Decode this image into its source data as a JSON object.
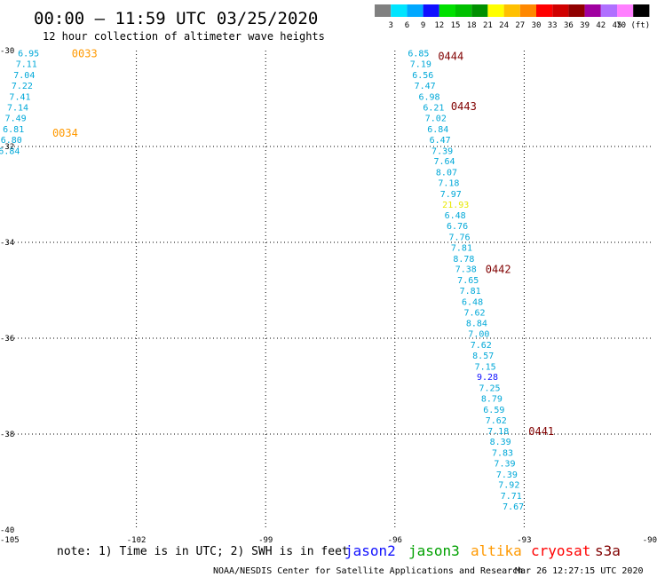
{
  "header": {
    "title": "00:00 — 11:59 UTC 03/25/2020",
    "subtitle": "12 hour collection of altimeter wave heights"
  },
  "color_scale": {
    "labels": [
      "3",
      "6",
      "9",
      "12",
      "15",
      "18",
      "21",
      "24",
      "27",
      "30",
      "33",
      "36",
      "39",
      "42",
      "45",
      "70 (ft)"
    ],
    "colors": [
      "#808080",
      "#00e5ff",
      "#00a8ff",
      "#1010ff",
      "#00e000",
      "#00c000",
      "#009000",
      "#ffff00",
      "#ffc000",
      "#ff8800",
      "#ff0000",
      "#d00000",
      "#900000",
      "#a000a0",
      "#b070ff",
      "#ff80ff",
      "#000000"
    ]
  },
  "footer": {
    "note": "note: 1) Time is in UTC; 2) SWH is in feet",
    "credit": "NOAA/NESDIS Center for Satellite Applications and Research",
    "timestamp": "Mar 26 12:27:15 UTC 2020"
  },
  "legend": [
    {
      "name": "jason2",
      "color": "#1010ff"
    },
    {
      "name": "jason3",
      "color": "#00a000"
    },
    {
      "name": "altika",
      "color": "#ff9900"
    },
    {
      "name": "cryosat",
      "color": "#ff0000"
    },
    {
      "name": "s3a",
      "color": "#800000"
    }
  ],
  "chart_data": {
    "type": "scatter",
    "title": "00:00 — 11:59 UTC 03/25/2020",
    "subtitle": "12 hour collection of altimeter wave heights",
    "xlim": [
      -105,
      -90
    ],
    "ylim": [
      -40,
      -30
    ],
    "xticks": [
      -105,
      -102,
      -99,
      -96,
      -93,
      -90
    ],
    "yticks": [
      -30,
      -32,
      -34,
      -36,
      -38,
      -40
    ],
    "grid": true,
    "points": [
      {
        "x": -104.75,
        "y": -30.05,
        "label": "6.95",
        "color": "#00a8d8"
      },
      {
        "x": -104.8,
        "y": -30.27,
        "label": "7.11",
        "color": "#00a8d8"
      },
      {
        "x": -104.85,
        "y": -30.5,
        "label": "7.04",
        "color": "#00a8d8"
      },
      {
        "x": -104.9,
        "y": -30.72,
        "label": "7.22",
        "color": "#00a8d8"
      },
      {
        "x": -104.95,
        "y": -30.95,
        "label": "7.41",
        "color": "#00a8d8"
      },
      {
        "x": -105.0,
        "y": -31.18,
        "label": "7.14",
        "color": "#00a8d8"
      },
      {
        "x": -105.05,
        "y": -31.4,
        "label": "7.49",
        "color": "#00a8d8"
      },
      {
        "x": -105.1,
        "y": -31.63,
        "label": "6.81",
        "color": "#00a8d8"
      },
      {
        "x": -105.15,
        "y": -31.85,
        "label": "6.80",
        "color": "#00a8d8"
      },
      {
        "x": -105.2,
        "y": -32.08,
        "label": "6.84",
        "color": "#00a8d8"
      },
      {
        "x": -95.7,
        "y": -30.05,
        "label": "6.85",
        "color": "#00a8d8"
      },
      {
        "x": -95.65,
        "y": -30.27,
        "label": "7.19",
        "color": "#00a8d8"
      },
      {
        "x": -95.6,
        "y": -30.5,
        "label": "6.56",
        "color": "#00a8d8"
      },
      {
        "x": -95.55,
        "y": -30.72,
        "label": "7.47",
        "color": "#00a8d8"
      },
      {
        "x": -95.45,
        "y": -30.95,
        "label": "6.98",
        "color": "#00a8d8"
      },
      {
        "x": -95.35,
        "y": -31.18,
        "label": "6.21",
        "color": "#00a8d8"
      },
      {
        "x": -95.3,
        "y": -31.4,
        "label": "7.02",
        "color": "#00a8d8"
      },
      {
        "x": -95.25,
        "y": -31.63,
        "label": "6.84",
        "color": "#00a8d8"
      },
      {
        "x": -95.2,
        "y": -31.85,
        "label": "6.47",
        "color": "#00a8d8"
      },
      {
        "x": -95.15,
        "y": -32.08,
        "label": "7.39",
        "color": "#00a8d8"
      },
      {
        "x": -95.1,
        "y": -32.3,
        "label": "7.64",
        "color": "#00a8d8"
      },
      {
        "x": -95.05,
        "y": -32.53,
        "label": "8.07",
        "color": "#00a8d8"
      },
      {
        "x": -95.0,
        "y": -32.75,
        "label": "7.18",
        "color": "#00a8d8"
      },
      {
        "x": -94.95,
        "y": -32.98,
        "label": "7.97",
        "color": "#00a8d8"
      },
      {
        "x": -94.9,
        "y": -33.2,
        "label": "21.93",
        "color": "#e8e800"
      },
      {
        "x": -94.85,
        "y": -33.43,
        "label": "6.48",
        "color": "#00a8d8"
      },
      {
        "x": -94.8,
        "y": -33.65,
        "label": "6.76",
        "color": "#00a8d8"
      },
      {
        "x": -94.75,
        "y": -33.88,
        "label": "7.76",
        "color": "#00a8d8"
      },
      {
        "x": -94.7,
        "y": -34.1,
        "label": "7.81",
        "color": "#00a8d8"
      },
      {
        "x": -94.65,
        "y": -34.33,
        "label": "8.78",
        "color": "#00a8d8"
      },
      {
        "x": -94.6,
        "y": -34.55,
        "label": "7.38",
        "color": "#00a8d8"
      },
      {
        "x": -94.55,
        "y": -34.78,
        "label": "7.65",
        "color": "#00a8d8"
      },
      {
        "x": -94.5,
        "y": -35.0,
        "label": "7.81",
        "color": "#00a8d8"
      },
      {
        "x": -94.45,
        "y": -35.23,
        "label": "6.48",
        "color": "#00a8d8"
      },
      {
        "x": -94.4,
        "y": -35.45,
        "label": "7.62",
        "color": "#00a8d8"
      },
      {
        "x": -94.35,
        "y": -35.68,
        "label": "8.84",
        "color": "#00a8d8"
      },
      {
        "x": -94.3,
        "y": -35.9,
        "label": "7.00",
        "color": "#00a8d8"
      },
      {
        "x": -94.25,
        "y": -36.13,
        "label": "7.62",
        "color": "#00a8d8"
      },
      {
        "x": -94.2,
        "y": -36.35,
        "label": "8.57",
        "color": "#00a8d8"
      },
      {
        "x": -94.15,
        "y": -36.58,
        "label": "7.15",
        "color": "#00a8d8"
      },
      {
        "x": -94.1,
        "y": -36.8,
        "label": "9.28",
        "color": "#1010ff"
      },
      {
        "x": -94.05,
        "y": -37.03,
        "label": "7.25",
        "color": "#00a8d8"
      },
      {
        "x": -94.0,
        "y": -37.25,
        "label": "8.79",
        "color": "#00a8d8"
      },
      {
        "x": -93.95,
        "y": -37.48,
        "label": "6.59",
        "color": "#00a8d8"
      },
      {
        "x": -93.9,
        "y": -37.7,
        "label": "7.62",
        "color": "#00a8d8"
      },
      {
        "x": -93.85,
        "y": -37.93,
        "label": "7.18",
        "color": "#00a8d8"
      },
      {
        "x": -93.8,
        "y": -38.15,
        "label": "8.39",
        "color": "#00a8d8"
      },
      {
        "x": -93.75,
        "y": -38.38,
        "label": "7.83",
        "color": "#00a8d8"
      },
      {
        "x": -93.7,
        "y": -38.6,
        "label": "7.39",
        "color": "#00a8d8"
      },
      {
        "x": -93.65,
        "y": -38.83,
        "label": "7.39",
        "color": "#00a8d8"
      },
      {
        "x": -93.6,
        "y": -39.05,
        "label": "7.92",
        "color": "#00a8d8"
      },
      {
        "x": -93.55,
        "y": -39.28,
        "label": "7.71",
        "color": "#00a8d8"
      },
      {
        "x": -93.5,
        "y": -39.5,
        "label": "7.67",
        "color": "#00a8d8"
      }
    ],
    "annotations": [
      {
        "x": -103.5,
        "y": -30.05,
        "text": "0033",
        "color": "#ff9900"
      },
      {
        "x": -103.95,
        "y": -31.7,
        "text": "0034",
        "color": "#ff9900"
      },
      {
        "x": -95.0,
        "y": -30.1,
        "text": "0444",
        "color": "#800000"
      },
      {
        "x": -94.7,
        "y": -31.15,
        "text": "0443",
        "color": "#800000"
      },
      {
        "x": -93.9,
        "y": -34.55,
        "text": "0442",
        "color": "#800000"
      },
      {
        "x": -92.9,
        "y": -37.93,
        "text": "0441",
        "color": "#800000"
      }
    ]
  }
}
